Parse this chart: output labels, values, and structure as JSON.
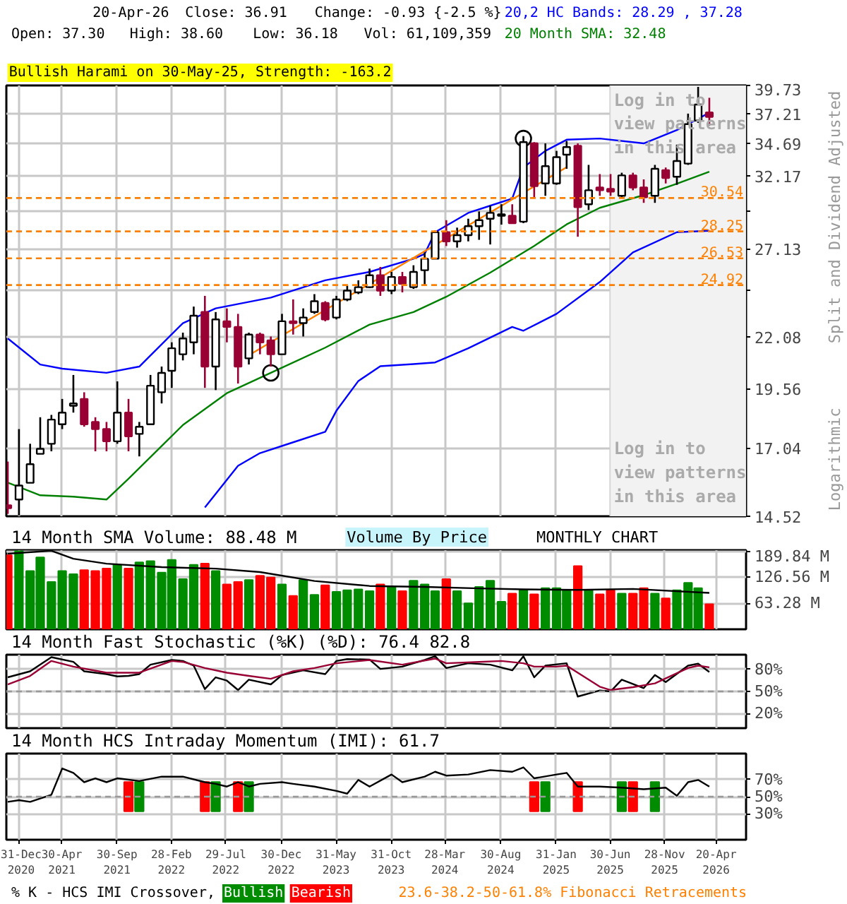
{
  "chart_data": [
    {
      "type": "candlestick",
      "log": true,
      "grid": true,
      "tick_labels": "y",
      "ylabel": "Split and Dividend Adjusted",
      "annotations": [
        "20-Apr-26",
        "Close: 36.91",
        "Change: -0.93 {-2.5 %}",
        "Open: 37.30",
        "High: 38.60",
        "Low: 36.18",
        "Vol: 61,109,359",
        "Bullish Harami on 30-May-25, Strength: -163.2",
        {
          "text": "Log in to\nview patterns\nin this area",
          "x": "2025-07-10",
          "y": 39.3
        },
        {
          "text": "Log in to\nview patterns\nin this area",
          "x": "2025-07-10",
          "y": 17.4
        },
        "Logarithmic"
      ],
      "xlim": [
        "2020-11-27",
        "2026-07-12"
      ],
      "xticks": [
        {
          "value": "2020-12-31",
          "label": null
        },
        {
          "value": "2021-04-30",
          "label": null
        },
        {
          "value": "2021-09-30",
          "label": null
        },
        {
          "value": "2022-02-28",
          "label": null
        },
        {
          "value": "2022-07-29",
          "label": null
        },
        {
          "value": "2022-12-30",
          "label": null
        },
        {
          "value": "2023-05-31",
          "label": null
        },
        {
          "value": "2023-10-31",
          "label": null
        },
        {
          "value": "2024-03-28",
          "label": null
        },
        {
          "value": "2024-08-30",
          "label": null
        },
        {
          "value": "2025-01-31",
          "label": null
        },
        {
          "value": "2025-06-30",
          "label": null
        },
        {
          "value": "2025-11-28",
          "label": null
        },
        {
          "value": "2026-04-20",
          "label": null
        }
      ],
      "ylim": [
        14.52,
        39.73
      ],
      "yticks": [
        14.52,
        17.04,
        19.56,
        22.08,
        {
          "value": 24.61,
          "label": null
        },
        27.13,
        {
          "value": 29.65,
          "label": null
        },
        32.17,
        34.69,
        37.21,
        39.73
      ],
      "x": [
        "2020-12",
        "2021-01",
        "2021-02",
        "2021-03",
        "2021-04",
        "2021-05",
        "2021-06",
        "2021-07",
        "2021-08",
        "2021-09",
        "2021-10",
        "2021-11",
        "2021-12",
        "2022-01",
        "2022-02",
        "2022-03",
        "2022-04",
        "2022-05",
        "2022-06",
        "2022-07",
        "2022-08",
        "2022-09",
        "2022-10",
        "2022-11",
        "2022-12",
        "2023-01",
        "2023-02",
        "2023-03",
        "2023-04",
        "2023-05",
        "2023-06",
        "2023-07",
        "2023-08",
        "2023-09",
        "2023-10",
        "2023-11",
        "2023-12",
        "2024-01",
        "2024-02",
        "2024-03",
        "2024-04",
        "2024-05",
        "2024-06",
        "2024-07",
        "2024-08",
        "2024-09",
        "2024-10",
        "2024-11",
        "2024-12",
        "2025-01",
        "2025-02",
        "2025-03",
        "2025-04",
        "2025-05",
        "2025-06",
        "2025-07",
        "2025-08",
        "2025-09",
        "2025-10",
        "2025-11",
        "2025-12",
        "2026-01",
        "2026-02",
        "2026-03",
        "2026-04"
      ],
      "ohlc": [
        [
          14.9,
          16.5,
          14.6,
          14.8
        ],
        [
          15.1,
          17.8,
          14.55,
          15.6
        ],
        [
          15.7,
          17.2,
          15.7,
          16.4
        ],
        [
          16.8,
          18.3,
          16.8,
          17.0
        ],
        [
          17.2,
          18.4,
          16.9,
          18.2
        ],
        [
          18.0,
          19.1,
          17.8,
          18.5
        ],
        [
          18.8,
          20.2,
          18.5,
          18.9
        ],
        [
          19.1,
          19.4,
          17.9,
          18.0
        ],
        [
          18.1,
          18.3,
          16.9,
          17.8
        ],
        [
          17.8,
          18.1,
          16.9,
          17.3
        ],
        [
          17.3,
          19.9,
          17.2,
          18.5
        ],
        [
          18.5,
          19.1,
          16.9,
          17.5
        ],
        [
          17.6,
          18.1,
          16.7,
          17.9
        ],
        [
          18.0,
          20.2,
          18.0,
          19.7
        ],
        [
          19.4,
          20.6,
          18.9,
          20.3
        ],
        [
          20.4,
          21.8,
          19.6,
          21.5
        ],
        [
          21.2,
          22.3,
          20.9,
          22.0
        ],
        [
          21.8,
          23.7,
          21.2,
          23.2
        ],
        [
          23.4,
          24.3,
          19.6,
          20.6
        ],
        [
          20.6,
          23.4,
          19.5,
          23.0
        ],
        [
          22.9,
          23.6,
          21.8,
          22.6
        ],
        [
          22.6,
          23.3,
          19.8,
          20.6
        ],
        [
          21.0,
          22.3,
          20.7,
          22.2
        ],
        [
          22.2,
          22.3,
          21.2,
          21.8
        ],
        [
          21.9,
          22.1,
          20.6,
          21.2
        ],
        [
          21.2,
          23.3,
          21.2,
          22.9
        ],
        [
          22.9,
          24.1,
          22.2,
          22.8
        ],
        [
          22.8,
          23.6,
          22.1,
          23.1
        ],
        [
          23.4,
          24.4,
          23.3,
          24.0
        ],
        [
          23.9,
          24.0,
          22.9,
          23.0
        ],
        [
          23.1,
          24.3,
          23.0,
          24.1
        ],
        [
          24.1,
          24.9,
          24.0,
          24.6
        ],
        [
          24.5,
          25.2,
          24.4,
          24.8
        ],
        [
          24.8,
          25.9,
          24.75,
          25.5
        ],
        [
          25.5,
          26.0,
          24.3,
          24.6
        ],
        [
          24.6,
          25.7,
          24.4,
          25.4
        ],
        [
          25.4,
          25.7,
          24.5,
          25.0
        ],
        [
          24.8,
          26.1,
          24.7,
          25.7
        ],
        [
          25.8,
          26.9,
          24.9,
          26.5
        ],
        [
          26.5,
          28.3,
          26.5,
          28.2
        ],
        [
          28.2,
          29.0,
          27.3,
          27.6
        ],
        [
          27.6,
          28.5,
          27.2,
          28.0
        ],
        [
          28.0,
          29.1,
          27.6,
          28.6
        ],
        [
          28.6,
          29.6,
          27.7,
          29.0
        ],
        [
          29.1,
          30.0,
          27.4,
          29.5
        ],
        [
          29.3,
          30.1,
          28.7,
          29.4
        ],
        [
          29.3,
          30.1,
          28.8,
          28.8
        ],
        [
          28.9,
          35.3,
          28.8,
          34.8
        ],
        [
          34.7,
          34.8,
          30.5,
          31.4
        ],
        [
          31.6,
          34.7,
          30.7,
          32.9
        ],
        [
          31.6,
          34.1,
          31.5,
          33.6
        ],
        [
          33.8,
          34.9,
          32.7,
          34.4
        ],
        [
          34.5,
          34.7,
          27.9,
          29.9
        ],
        [
          30.1,
          33.0,
          29.7,
          31.1
        ],
        [
          31.3,
          32.3,
          30.7,
          31.1
        ],
        [
          31.2,
          32.3,
          30.7,
          31.0
        ],
        [
          30.7,
          32.4,
          30.6,
          32.2
        ],
        [
          32.2,
          32.4,
          31.1,
          31.3
        ],
        [
          31.3,
          31.9,
          30.2,
          30.6
        ],
        [
          30.7,
          33.0,
          30.2,
          32.7
        ],
        [
          32.6,
          32.8,
          31.6,
          32.0
        ],
        [
          32.1,
          34.6,
          31.5,
          33.3
        ],
        [
          33.1,
          37.2,
          33.0,
          36.3
        ],
        [
          36.6,
          39.6,
          36.4,
          38.0
        ],
        [
          37.3,
          38.6,
          36.18,
          36.91
        ]
      ],
      "series": [
        {
          "type": "line",
          "name": "20,2 HC Bands: 28.29 , 37.28",
          "color": "#0000ff",
          "x": [
            "2020-12",
            "2021-03",
            "2021-05",
            "2021-09",
            "2021-12",
            "2022-04",
            "2022-07",
            "2022-12",
            "2023-05",
            "2023-09",
            "2024-01",
            "2024-02",
            "2024-03",
            "2024-06",
            "2024-08",
            "2024-10",
            "2024-11",
            "2025-01",
            "2025-03",
            "2025-06",
            "2025-10",
            "2026-01",
            "2026-04"
          ],
          "values": [
            22.0,
            20.7,
            20.5,
            20.3,
            20.6,
            22.8,
            23.6,
            24.2,
            25.2,
            25.7,
            26.5,
            26.8,
            28.2,
            29.5,
            30.0,
            30.5,
            32.8,
            34.1,
            35.0,
            35.1,
            34.7,
            35.8,
            37.28
          ]
        },
        {
          "type": "line",
          "color": "#0000ff",
          "x": [
            "2022-06",
            "2022-09",
            "2022-11",
            "2023-02",
            "2023-05",
            "2023-06",
            "2023-08",
            "2023-10",
            "2024-01",
            "2024-03",
            "2024-06",
            "2024-10",
            "2024-11",
            "2025-02",
            "2025-06",
            "2025-09",
            "2026-01",
            "2026-04"
          ],
          "values": [
            14.82,
            16.34,
            16.83,
            17.26,
            17.69,
            18.58,
            19.92,
            20.62,
            20.72,
            20.8,
            21.5,
            22.6,
            22.4,
            23.3,
            25.1,
            26.9,
            28.2,
            28.29
          ]
        },
        {
          "type": "line",
          "name": "20 Month SMA: 32.48",
          "color": "#008000",
          "x": [
            "2020-12",
            "2021-03",
            "2021-06",
            "2021-09",
            "2021-11",
            "2022-04",
            "2022-08",
            "2022-12",
            "2023-05",
            "2023-09",
            "2024-01",
            "2024-04",
            "2024-08",
            "2024-12",
            "2025-03",
            "2025-06",
            "2025-10",
            "2026-01",
            "2026-04"
          ],
          "values": [
            15.71,
            15.25,
            15.2,
            15.1,
            15.85,
            17.97,
            19.36,
            20.3,
            21.53,
            22.72,
            23.4,
            24.25,
            25.66,
            27.31,
            28.72,
            29.85,
            30.75,
            31.58,
            32.48
          ]
        },
        {
          "type": "line",
          "color": "#ff8000",
          "x": [
            "2022-10",
            "2025-03"
          ],
          "values": [
            21.15,
            32.82
          ]
        },
        {
          "type": "scatter",
          "marker": "circle",
          "color": "#000000",
          "x": [
            "2022-12",
            "2024-11"
          ],
          "values": [
            20.3,
            35.1
          ]
        }
      ],
      "ref_lines": [
        {
          "axis": "y",
          "value": 30.54,
          "label": "30.54",
          "color": "#ff8000",
          "line_style": "dashed"
        },
        {
          "axis": "y",
          "value": 28.25,
          "label": "28.25",
          "color": "#ff8000",
          "line_style": "dashed"
        },
        {
          "axis": "y",
          "value": 26.53,
          "label": "26.53",
          "color": "#ff8000",
          "line_style": "dashed"
        },
        {
          "axis": "y",
          "value": 24.92,
          "label": "24.92",
          "color": "#ff8000",
          "line_style": "dashed"
        }
      ],
      "bands": [
        {
          "axis": "x",
          "from": "2025-06-30",
          "to": "2026-07-12",
          "color": "#f2f2f2"
        }
      ]
    },
    {
      "type": "bar",
      "grid": true,
      "tick_labels": "y",
      "title": "14 Month SMA Volume: 88.48 M",
      "annotations": [
        "Volume By Price",
        "MONTHLY CHART"
      ],
      "xlim": [
        "2020-11-27",
        "2026-07-12"
      ],
      "xticks": [
        {
          "value": "2020-12-31",
          "label": null
        },
        {
          "value": "2021-04-30",
          "label": null
        },
        {
          "value": "2021-09-30",
          "label": null
        },
        {
          "value": "2022-02-28",
          "label": null
        },
        {
          "value": "2022-07-29",
          "label": null
        },
        {
          "value": "2022-12-30",
          "label": null
        },
        {
          "value": "2023-05-31",
          "label": null
        },
        {
          "value": "2023-10-31",
          "label": null
        },
        {
          "value": "2024-03-28",
          "label": null
        },
        {
          "value": "2024-08-30",
          "label": null
        },
        {
          "value": "2025-01-31",
          "label": null
        },
        {
          "value": "2025-06-30",
          "label": null
        },
        {
          "value": "2025-11-28",
          "label": null
        },
        {
          "value": "2026-04-20",
          "label": null
        }
      ],
      "ylim": [
        0,
        192.5
      ],
      "yticks": [
        {
          "value": 63.28,
          "label": "63.28 M"
        },
        {
          "value": 126.56,
          "label": "126.56 M"
        },
        {
          "value": 189.84,
          "label": "189.84 M"
        }
      ],
      "x": [
        "2020-12",
        "2021-01",
        "2021-02",
        "2021-03",
        "2021-04",
        "2021-05",
        "2021-06",
        "2021-07",
        "2021-08",
        "2021-09",
        "2021-10",
        "2021-11",
        "2021-12",
        "2022-01",
        "2022-02",
        "2022-03",
        "2022-04",
        "2022-05",
        "2022-06",
        "2022-07",
        "2022-08",
        "2022-09",
        "2022-10",
        "2022-11",
        "2022-12",
        "2023-01",
        "2023-02",
        "2023-03",
        "2023-04",
        "2023-05",
        "2023-06",
        "2023-07",
        "2023-08",
        "2023-09",
        "2023-10",
        "2023-11",
        "2023-12",
        "2024-01",
        "2024-02",
        "2024-03",
        "2024-04",
        "2024-05",
        "2024-06",
        "2024-07",
        "2024-08",
        "2024-09",
        "2024-10",
        "2024-11",
        "2024-12",
        "2025-01",
        "2025-02",
        "2025-03",
        "2025-04",
        "2025-05",
        "2025-06",
        "2025-07",
        "2025-08",
        "2025-09",
        "2025-10",
        "2025-11",
        "2025-12",
        "2026-01",
        "2026-02",
        "2026-03",
        "2026-04"
      ],
      "values": [
        180,
        190,
        142,
        175,
        115,
        142,
        134,
        144,
        142,
        148,
        157,
        148,
        163,
        166,
        138,
        169,
        122,
        157,
        160,
        142,
        109,
        115,
        120,
        130,
        126,
        109,
        81,
        120,
        84,
        107,
        91,
        95,
        97,
        93,
        109,
        103,
        93,
        118,
        109,
        93,
        122,
        93,
        63,
        103,
        118,
        67,
        87,
        95,
        85,
        100,
        100,
        96,
        154,
        95,
        85,
        95,
        87,
        87,
        100,
        87,
        75,
        95,
        113,
        100,
        61.11
      ],
      "colors": [
        "#ff0000",
        "#008c00",
        "#008c00",
        "#008c00",
        "#008c00",
        "#008c00",
        "#008c00",
        "#ff0000",
        "#ff0000",
        "#ff0000",
        "#008c00",
        "#ff0000",
        "#008c00",
        "#008c00",
        "#008c00",
        "#008c00",
        "#008c00",
        "#008c00",
        "#ff0000",
        "#008c00",
        "#ff0000",
        "#ff0000",
        "#008c00",
        "#ff0000",
        "#ff0000",
        "#008c00",
        "#ff0000",
        "#008c00",
        "#008c00",
        "#ff0000",
        "#008c00",
        "#008c00",
        "#008c00",
        "#008c00",
        "#ff0000",
        "#008c00",
        "#ff0000",
        "#008c00",
        "#008c00",
        "#008c00",
        "#ff0000",
        "#008c00",
        "#008c00",
        "#008c00",
        "#008c00",
        "#008c00",
        "#ff0000",
        "#008c00",
        "#ff0000",
        "#008c00",
        "#008c00",
        "#008c00",
        "#ff0000",
        "#008c00",
        "#ff0000",
        "#ff0000",
        "#008c00",
        "#ff0000",
        "#ff0000",
        "#008c00",
        "#ff0000",
        "#008c00",
        "#008c00",
        "#008c00",
        "#ff0000"
      ],
      "series": [
        {
          "type": "line",
          "color": "#000000",
          "x": [
            "2020-12",
            "2021-04",
            "2021-06",
            "2021-09",
            "2022-02",
            "2022-07",
            "2022-11",
            "2023-04",
            "2023-09",
            "2024-02",
            "2024-07",
            "2024-11",
            "2025-04",
            "2025-09",
            "2026-04"
          ],
          "values": [
            183.8,
            191,
            171.7,
            159.7,
            151.2,
            147.6,
            139.2,
            117.5,
            105.4,
            103,
            99.4,
            97,
            95.8,
            98.2,
            88.48
          ]
        }
      ]
    },
    {
      "type": "line",
      "grid": true,
      "tick_labels": "y",
      "title": "14 Month Fast Stochastic (%K) (%D): 76.4  82.8",
      "xlim": [
        "2020-11-27",
        "2026-07-12"
      ],
      "xticks": [
        {
          "value": "2020-12-31",
          "label": null
        },
        {
          "value": "2021-04-30",
          "label": null
        },
        {
          "value": "2021-09-30",
          "label": null
        },
        {
          "value": "2022-02-28",
          "label": null
        },
        {
          "value": "2022-07-29",
          "label": null
        },
        {
          "value": "2022-12-30",
          "label": null
        },
        {
          "value": "2023-05-31",
          "label": null
        },
        {
          "value": "2023-10-31",
          "label": null
        },
        {
          "value": "2024-03-28",
          "label": null
        },
        {
          "value": "2024-08-30",
          "label": null
        },
        {
          "value": "2025-01-31",
          "label": null
        },
        {
          "value": "2025-06-30",
          "label": null
        },
        {
          "value": "2025-11-28",
          "label": null
        },
        {
          "value": "2026-04-20",
          "label": null
        }
      ],
      "ylim": [
        0,
        100
      ],
      "yticks": [
        {
          "value": 20,
          "label": "20%"
        },
        {
          "value": 50,
          "label": "50%"
        },
        {
          "value": 80,
          "label": "80%"
        }
      ],
      "ref_lines": [
        {
          "axis": "y",
          "value": 50,
          "color": "#999999",
          "line_style": "dashed"
        }
      ],
      "series": [
        {
          "color": "#000000",
          "x": [
            "2020-12",
            "2021-02",
            "2021-04",
            "2021-06",
            "2021-07",
            "2021-09",
            "2021-10",
            "2021-11",
            "2021-12",
            "2022-01",
            "2022-03",
            "2022-04",
            "2022-05",
            "2022-06",
            "2022-07",
            "2022-08",
            "2022-09",
            "2022-10",
            "2022-12",
            "2023-01",
            "2023-03",
            "2023-05",
            "2023-06",
            "2023-07",
            "2023-09",
            "2023-10",
            "2023-12",
            "2024-01",
            "2024-02",
            "2024-03",
            "2024-04",
            "2024-06",
            "2024-08",
            "2024-10",
            "2024-11",
            "2024-12",
            "2025-01",
            "2025-03",
            "2025-04",
            "2025-06",
            "2025-07",
            "2025-08",
            "2025-10",
            "2025-11",
            "2025-12",
            "2026-02",
            "2026-03",
            "2026-04"
          ],
          "values": [
            69.2,
            77.4,
            96.6,
            90.2,
            77.4,
            73.6,
            70.4,
            71.1,
            73.6,
            86.4,
            92.8,
            91.5,
            85.1,
            53.2,
            69.2,
            64.7,
            51.9,
            66.0,
            59.6,
            72.3,
            78.7,
            73.6,
            91.5,
            94.0,
            93.4,
            80.6,
            83.8,
            88.3,
            92.8,
            97.9,
            81.9,
            88.3,
            86.4,
            78.7,
            97.9,
            69.2,
            85.1,
            88.3,
            43.0,
            51.3,
            50.0,
            66.0,
            54.5,
            72.3,
            62.8,
            85.1,
            87.7,
            76.4
          ]
        },
        {
          "color": "#990033",
          "x": [
            "2020-12",
            "2021-02",
            "2021-04",
            "2021-06",
            "2021-09",
            "2021-12",
            "2022-03",
            "2022-04",
            "2022-06",
            "2022-08",
            "2022-10",
            "2022-12",
            "2023-02",
            "2023-04",
            "2023-06",
            "2023-09",
            "2023-12",
            "2024-03",
            "2024-04",
            "2024-07",
            "2024-09",
            "2024-11",
            "2024-12",
            "2025-02",
            "2025-03",
            "2025-06",
            "2025-07",
            "2025-09",
            "2025-11",
            "2026-02",
            "2026-03",
            "2026-04"
          ],
          "values": [
            59.6,
            71.1,
            91.5,
            83.8,
            75.5,
            75.5,
            91.5,
            90.2,
            81.9,
            75.5,
            71.1,
            67.2,
            77.4,
            81.9,
            88.3,
            92.8,
            86.4,
            94.7,
            88.3,
            90.2,
            91.5,
            88.3,
            83.8,
            83.8,
            85.1,
            56.4,
            51.9,
            55.8,
            60.9,
            81.9,
            85.1,
            82.8
          ]
        }
      ]
    },
    {
      "type": "line",
      "grid": true,
      "legend": "bottom",
      "legend_title": "% K - HCS IMI Crossover,",
      "title": "14 Month HCS Intraday Momentum (IMI): 61.7",
      "annotations": [
        "23.6-38.2-50-61.8% Fibonacci Retracements"
      ],
      "xlim": [
        "2020-11-27",
        "2026-07-12"
      ],
      "xticks": [
        {
          "value": "2020-12-31",
          "label": "31-Dec\n2020"
        },
        {
          "value": "2021-04-30",
          "label": "30-Apr\n2021"
        },
        {
          "value": "2021-09-30",
          "label": "30-Sep\n2021"
        },
        {
          "value": "2022-02-28",
          "label": "28-Feb\n2022"
        },
        {
          "value": "2022-07-29",
          "label": "29-Jul\n2022"
        },
        {
          "value": "2022-12-30",
          "label": "30-Dec\n2022"
        },
        {
          "value": "2023-05-31",
          "label": "31-May\n2023"
        },
        {
          "value": "2023-10-31",
          "label": "31-Oct\n2023"
        },
        {
          "value": "2024-03-28",
          "label": "28-Mar\n2024"
        },
        {
          "value": "2024-08-30",
          "label": "30-Aug\n2024"
        },
        {
          "value": "2025-01-31",
          "label": "31-Jan\n2025"
        },
        {
          "value": "2025-06-30",
          "label": "30-Jun\n2025"
        },
        {
          "value": "2025-11-28",
          "label": "28-Nov\n2025"
        },
        {
          "value": "2026-04-20",
          "label": "20-Apr\n2026"
        }
      ],
      "ylim": [
        0,
        100
      ],
      "yticks": [
        {
          "value": 30,
          "label": "30%"
        },
        {
          "value": 50,
          "label": "50%"
        },
        {
          "value": 70,
          "label": "70%"
        }
      ],
      "ref_lines": [
        {
          "axis": "y",
          "value": 50,
          "color": "#999999",
          "line_style": "dashed"
        }
      ],
      "series": [
        {
          "type": "bar",
          "name": "Bullish",
          "color": "#008c00",
          "x": [
            "2021-12",
            "2022-07",
            "2022-10",
            "2025-01",
            "2025-08",
            "2025-11"
          ],
          "base": [
            33,
            33,
            33,
            33,
            33,
            33
          ],
          "values": [
            34,
            34,
            34,
            34,
            34,
            34
          ]
        },
        {
          "type": "bar",
          "name": "Bearish",
          "color": "#ff0000",
          "x": [
            "2021-11",
            "2022-06",
            "2022-09",
            "2024-12",
            "2025-04",
            "2025-09"
          ],
          "base": [
            33,
            33,
            33,
            33,
            33,
            33
          ],
          "values": [
            34,
            34,
            34,
            34,
            34,
            34
          ]
        },
        {
          "type": "line",
          "color": "#000000",
          "x": [
            "2020-12",
            "2021-01",
            "2021-02",
            "2021-04",
            "2021-05",
            "2021-06",
            "2021-07",
            "2021-08",
            "2021-09",
            "2021-10",
            "2021-12",
            "2022-02",
            "2022-04",
            "2022-06",
            "2022-07",
            "2022-08",
            "2022-09",
            "2022-10",
            "2022-11",
            "2023-01",
            "2023-02",
            "2023-04",
            "2023-06",
            "2023-07",
            "2023-08",
            "2023-09",
            "2023-11",
            "2023-12",
            "2024-02",
            "2024-03",
            "2024-04",
            "2024-06",
            "2024-08",
            "2024-10",
            "2024-11",
            "2024-12",
            "2025-02",
            "2025-03",
            "2025-04",
            "2025-06",
            "2025-08",
            "2025-10",
            "2025-12",
            "2026-01",
            "2026-02",
            "2026-03",
            "2026-04"
          ],
          "values": [
            44.0,
            45.9,
            44.0,
            52.2,
            82.7,
            77.6,
            66.8,
            71.3,
            66.8,
            71.3,
            68.1,
            73.2,
            73.2,
            66.8,
            64.9,
            61.7,
            66.8,
            61.7,
            64.9,
            66.8,
            64.9,
            61.7,
            56.7,
            53.5,
            69.4,
            61.7,
            75.7,
            66.8,
            73.2,
            78.9,
            74.4,
            75.7,
            80.8,
            78.9,
            84.0,
            71.3,
            75.7,
            77.6,
            61.7,
            61.7,
            60.5,
            58.6,
            60.5,
            51.0,
            66.8,
            69.4,
            61.7
          ]
        }
      ]
    }
  ]
}
